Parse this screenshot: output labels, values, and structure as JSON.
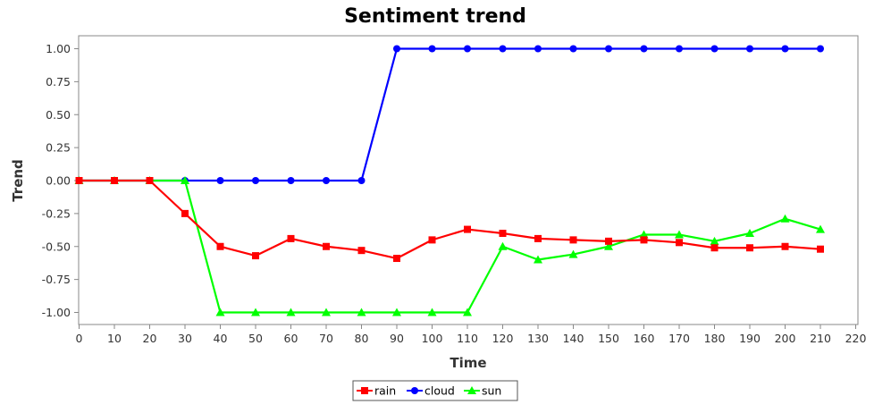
{
  "chart_data": {
    "type": "line",
    "title": "Sentiment trend",
    "xlabel": "Time",
    "ylabel": "Trend",
    "xlim": [
      0,
      220
    ],
    "ylim": [
      -1.1,
      1.1
    ],
    "x_ticks": [
      0,
      10,
      20,
      30,
      40,
      50,
      60,
      70,
      80,
      90,
      100,
      110,
      120,
      130,
      140,
      150,
      160,
      170,
      180,
      190,
      200,
      210,
      220
    ],
    "y_ticks": [
      1.0,
      0.75,
      0.5,
      0.25,
      0.0,
      -0.25,
      -0.5,
      -0.75,
      -1.0
    ],
    "y_tick_labels": [
      "1.00",
      "0.75",
      "0.50",
      "0.25",
      "0.00",
      "-0.25",
      "-0.50",
      "-0.75",
      "-1.00"
    ],
    "grid": false,
    "legend_position": "bottom",
    "x": [
      0,
      10,
      20,
      30,
      40,
      50,
      60,
      70,
      80,
      90,
      100,
      110,
      120,
      130,
      140,
      150,
      160,
      170,
      180,
      190,
      200,
      210
    ],
    "series": [
      {
        "name": "rain",
        "color": "#ff0000",
        "marker": "square",
        "values": [
          0.0,
          0.0,
          0.0,
          -0.25,
          -0.5,
          -0.57,
          -0.44,
          -0.5,
          -0.53,
          -0.59,
          -0.45,
          -0.37,
          -0.4,
          -0.44,
          -0.45,
          -0.46,
          -0.45,
          -0.47,
          -0.51,
          -0.51,
          -0.5,
          -0.52
        ]
      },
      {
        "name": "cloud",
        "color": "#0000ff",
        "marker": "circle",
        "values": [
          0.0,
          0.0,
          0.0,
          0.0,
          0.0,
          0.0,
          0.0,
          0.0,
          0.0,
          1.0,
          1.0,
          1.0,
          1.0,
          1.0,
          1.0,
          1.0,
          1.0,
          1.0,
          1.0,
          1.0,
          1.0,
          1.0
        ]
      },
      {
        "name": "sun",
        "color": "#00ff00",
        "marker": "triangle",
        "values": [
          0.0,
          0.0,
          0.0,
          0.0,
          -1.0,
          -1.0,
          -1.0,
          -1.0,
          -1.0,
          -1.0,
          -1.0,
          -1.0,
          -0.5,
          -0.6,
          -0.56,
          -0.5,
          -0.41,
          -0.41,
          -0.46,
          -0.4,
          -0.29,
          -0.37
        ]
      }
    ]
  }
}
